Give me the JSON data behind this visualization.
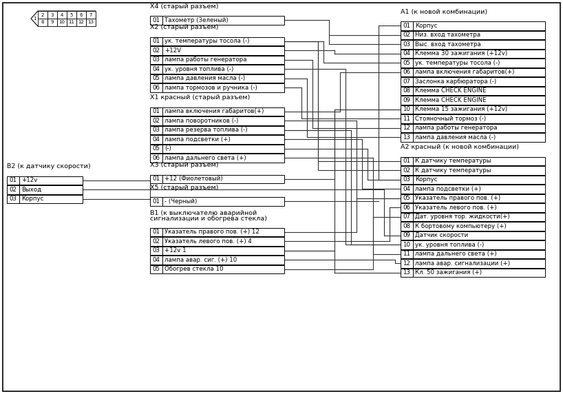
{
  "x4_title": "X4 (старый разъем)",
  "x4_items": [
    "01  Тахометр (Зеленый)"
  ],
  "x2_title": "X2 (старый разъем)",
  "x2_items": [
    "01  ук. температуры тосола (-)",
    "02  +12V",
    "03  лампа работы генератора",
    "04  ук. уровня топлива (-)",
    "05  лампа давления масла (-)",
    "06  лампа тормозов и ручника (-)"
  ],
  "x1_title": "X1 красный (старый разъем)",
  "x1_items": [
    "01  лампа включения габаритов(+)",
    "02  лампа поворотников (-)",
    "03  лампа резерва топлива (-)",
    "04  лампа подсветки (+)",
    "05  (-)",
    "06  лампа дальнего света (+)"
  ],
  "x3_title": "X3 (старый разъем)",
  "x3_items": [
    "01  +12 (Фиолетовый)"
  ],
  "x5_title": "X5 (старый разъем)",
  "x5_items": [
    "01  - (Черный)"
  ],
  "b1_title_line1": "В1 (к выключателю аварийной",
  "b1_title_line2": "сигнализации и обогрева стекла)",
  "b1_items": [
    "01  Указатель правого пов. (+) 12",
    "02  Указатель левого пов. (+) 4",
    "03  +12v 1",
    "04  лампа авар. сиг. (+) 10",
    "05  Обогрев стекла 10"
  ],
  "b2_title": "В2 (к датчику скорости)",
  "b2_items": [
    "01  +12v",
    "02  Выход",
    "03  Корпус"
  ],
  "a1_title": "А1 (к новой комбинации)",
  "a1_items": [
    "01  Корпус",
    "02  Низ. вход тахометра",
    "03  Выс. вход тахометра",
    "04  Клемма 30 зажигания (+12v)",
    "05  ук. температуры тосола (-)",
    "06  лампа включения габаритов(+)",
    "07  Заслонка карбюратора (-)",
    "08  Клемма CHECK ENGINE",
    "09  Клемма CHECK ENGINE",
    "10  Клемма 15 зажигания (+12v)",
    "11  Стояночный тормоз (-)",
    "12  лампа работы генератора",
    "13  лампа давления масла (-)"
  ],
  "a2_title": "А2 красный (к новой комбинации)",
  "a2_items": [
    "01  К датчику температуры",
    "02  К датчику температуры",
    "03  Корпус",
    "04  лампа подсветки (+)",
    "05  Указатель правого пов. (+)",
    "06  Указатель левого пов. (+)",
    "07  Дат. уровня тор. жидкости(+)",
    "08  К бортовому компьютеру (+)",
    "09  Датчик скорости",
    "10  ук. уровня топлива (-)",
    "11  лампа дальнего света (+)",
    "12  лампа авар. сигнализации (+)",
    "13  Кл. 50 зажигания (+)"
  ],
  "connector_top_row": [
    "2",
    "3",
    "4",
    "5",
    "6",
    "7"
  ],
  "connector_bottom_row": [
    "8",
    "9",
    "10",
    "11",
    "12",
    "13"
  ]
}
